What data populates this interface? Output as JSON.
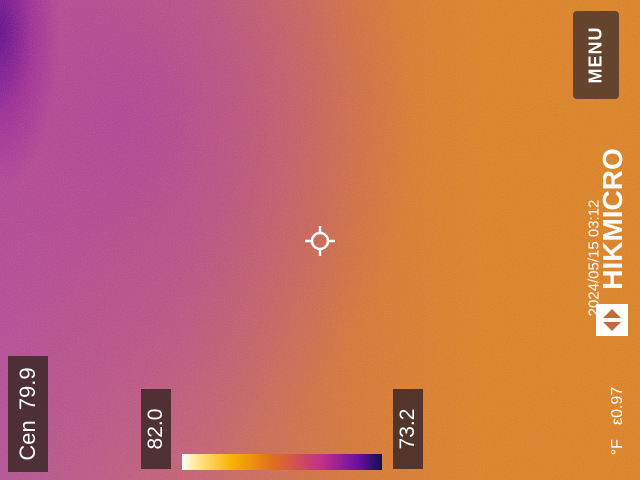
{
  "readouts": {
    "center_label": "Cen",
    "center_value": "79.9",
    "max_value": "82.0",
    "min_value": "73.2"
  },
  "menu": {
    "label": "MENU"
  },
  "brand": {
    "name": "HIKMICRO",
    "logo_icon": "hikmicro-logo-icon"
  },
  "status": {
    "datetime": "2024/05/15 03:12",
    "unit": "°F",
    "emissivity": "ε0.97"
  },
  "palette": {
    "scale_colors": [
      "#ffffff",
      "#ffe58a",
      "#f8b200",
      "#e0701f",
      "#c0308a",
      "#6a10a0",
      "#101050"
    ]
  },
  "icons": {
    "crosshair": "crosshair-icon"
  }
}
